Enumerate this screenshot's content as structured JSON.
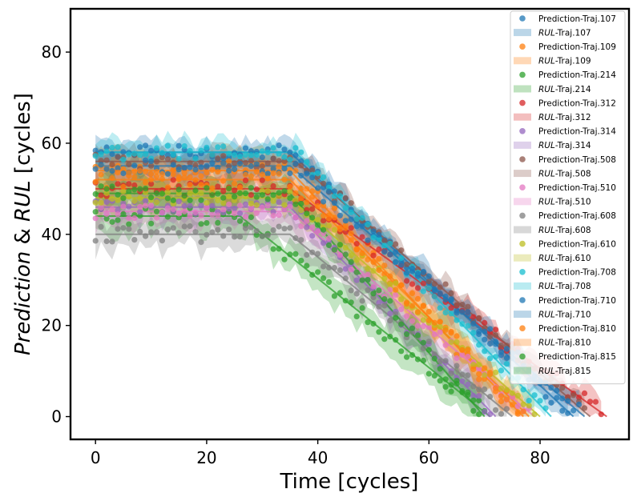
{
  "chart_data": {
    "type": "scatter",
    "xlabel": "Time [cycles]",
    "ylabel_parts": [
      {
        "text": "Prediction",
        "italic": true
      },
      {
        "text": " & ",
        "italic": false
      },
      {
        "text": "RUL",
        "italic": true
      },
      {
        "text": "  [cycles]",
        "italic": false
      }
    ],
    "xlim": [
      -4.5,
      96
    ],
    "ylim": [
      -5,
      89.5
    ],
    "xticks": [
      0,
      20,
      40,
      60,
      80
    ],
    "yticks": [
      0,
      20,
      40,
      60,
      80
    ],
    "grid": false,
    "legend_position": "top-right",
    "series": [
      {
        "traj": "107",
        "pred_label": "Prediction-Traj.107",
        "rul_prefix": "RUL",
        "rul_suffix": "-Traj.107",
        "color": "#1f77b4",
        "plateau": 58,
        "knee": 35,
        "end": 86,
        "noise": 1.6,
        "band": 2.5
      },
      {
        "traj": "109",
        "pred_label": "Prediction-Traj.109",
        "rul_prefix": "RUL",
        "rul_suffix": "-Traj.109",
        "color": "#ff7f0e",
        "plateau": 54,
        "knee": 35,
        "end": 77,
        "noise": 2.2,
        "band": 3.5
      },
      {
        "traj": "214",
        "pred_label": "Prediction-Traj.214",
        "rul_prefix": "RUL",
        "rul_suffix": "-Traj.214",
        "color": "#2ca02c",
        "plateau": 44,
        "knee": 26,
        "end": 71,
        "noise": 1.8,
        "band": 3.5
      },
      {
        "traj": "312",
        "pred_label": "Prediction-Traj.312",
        "rul_prefix": "RUL",
        "rul_suffix": "-Traj.312",
        "color": "#d62728",
        "plateau": 50,
        "knee": 35,
        "end": 92,
        "noise": 2.0,
        "band": 3.0
      },
      {
        "traj": "314",
        "pred_label": "Prediction-Traj.314",
        "rul_prefix": "RUL",
        "rul_suffix": "-Traj.314",
        "color": "#9467bd",
        "plateau": 46,
        "knee": 35,
        "end": 72,
        "noise": 1.6,
        "band": 3.0
      },
      {
        "traj": "508",
        "pred_label": "Prediction-Traj.508",
        "rul_prefix": "RUL",
        "rul_suffix": "-Traj.508",
        "color": "#8c564b",
        "plateau": 56,
        "knee": 36,
        "end": 89,
        "noise": 1.6,
        "band": 2.5
      },
      {
        "traj": "510",
        "pred_label": "Prediction-Traj.510",
        "rul_prefix": "RUL",
        "rul_suffix": "-Traj.510",
        "color": "#e377c2",
        "plateau": 45,
        "knee": 35,
        "end": 79,
        "noise": 1.6,
        "band": 3.0
      },
      {
        "traj": "608",
        "pred_label": "Prediction-Traj.608",
        "rul_prefix": "RUL",
        "rul_suffix": "-Traj.608",
        "color": "#7f7f7f",
        "plateau": 40,
        "knee": 35,
        "end": 75,
        "noise": 1.8,
        "band": 3.0
      },
      {
        "traj": "610",
        "pred_label": "Prediction-Traj.610",
        "rul_prefix": "RUL",
        "rul_suffix": "-Traj.610",
        "color": "#bcbd22",
        "plateau": 48,
        "knee": 35,
        "end": 80,
        "noise": 1.6,
        "band": 3.0
      },
      {
        "traj": "708",
        "pred_label": "Prediction-Traj.708",
        "rul_prefix": "RUL",
        "rul_suffix": "-Traj.708",
        "color": "#17becf",
        "plateau": 58,
        "knee": 36,
        "end": 82,
        "noise": 1.6,
        "band": 2.5
      },
      {
        "traj": "710",
        "pred_label": "Prediction-Traj.710",
        "rul_prefix": "RUL",
        "rul_suffix": "-Traj.710",
        "color": "#1f77b4",
        "plateau": 55,
        "knee": 35,
        "end": 88,
        "noise": 1.8,
        "band": 3.0
      },
      {
        "traj": "810",
        "pred_label": "Prediction-Traj.810",
        "rul_prefix": "RUL",
        "rul_suffix": "-Traj.810",
        "color": "#ff7f0e",
        "plateau": 52,
        "knee": 35,
        "end": 78,
        "noise": 2.0,
        "band": 3.5
      },
      {
        "traj": "815",
        "pred_label": "Prediction-Traj.815",
        "rul_prefix": "RUL",
        "rul_suffix": "-Traj.815",
        "color": "#2ca02c",
        "plateau": 49,
        "knee": 35,
        "end": 70,
        "noise": 1.6,
        "band": 3.0
      }
    ]
  }
}
